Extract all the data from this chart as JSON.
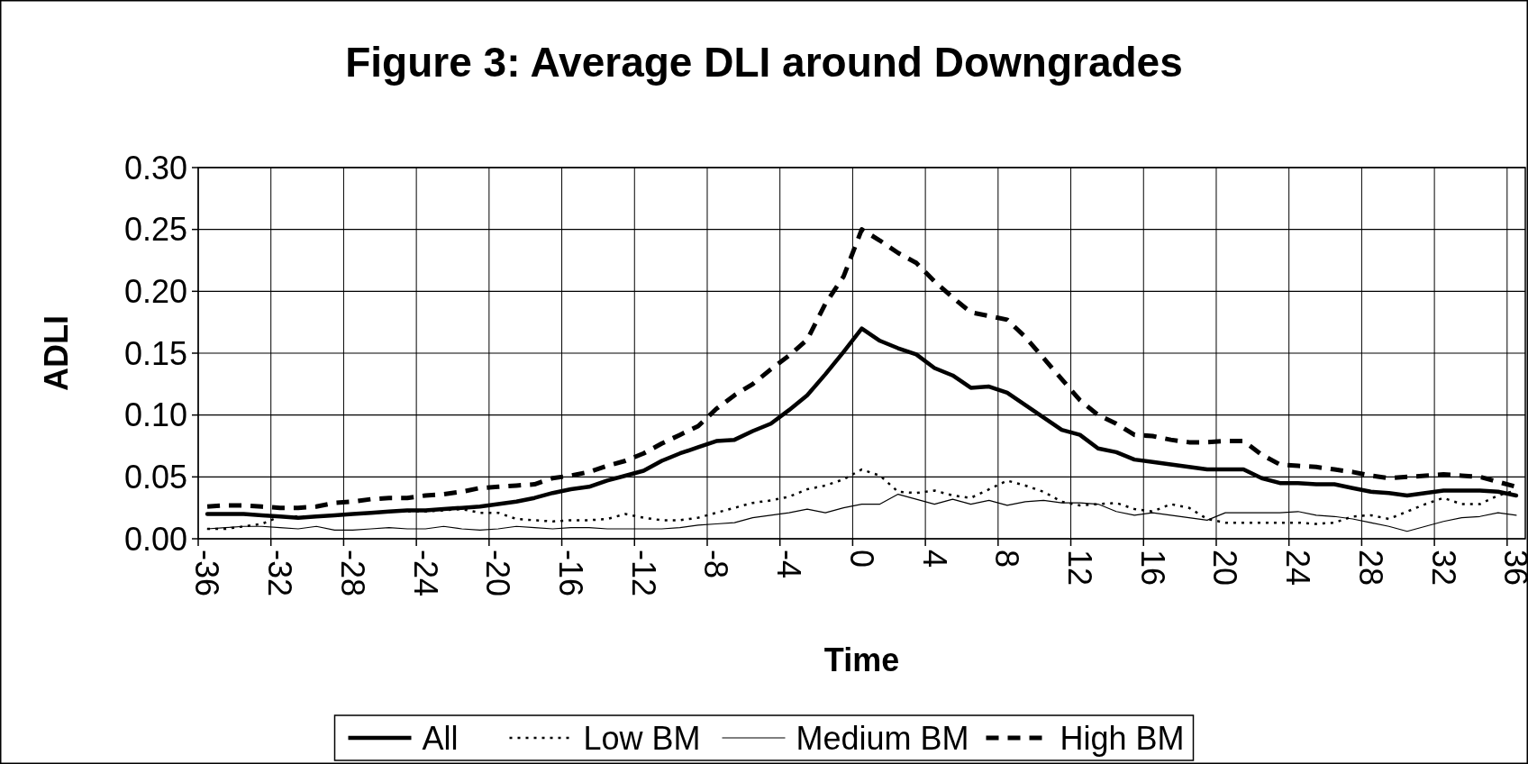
{
  "chart_data": {
    "type": "line",
    "title": "Figure 3: Average DLI around Downgrades",
    "xlabel": "Time",
    "ylabel": "ADLI",
    "categories": [
      "-36",
      null,
      null,
      null,
      "-32",
      null,
      null,
      null,
      "-28",
      null,
      null,
      null,
      "-24",
      null,
      null,
      null,
      "-20",
      null,
      null,
      null,
      "-16",
      null,
      null,
      null,
      "-12",
      null,
      null,
      null,
      "-8",
      null,
      null,
      null,
      "-4",
      null,
      null,
      null,
      "0",
      null,
      null,
      null,
      "4",
      null,
      null,
      null,
      "8",
      null,
      null,
      null,
      "12",
      null,
      null,
      null,
      "16",
      null,
      null,
      null,
      "20",
      null,
      null,
      null,
      "24",
      null,
      null,
      null,
      "28",
      null,
      null,
      null,
      "32",
      null,
      null,
      null,
      "36"
    ],
    "ylim": [
      0,
      0.3
    ],
    "yticks": [
      {
        "value": 0,
        "label": "0.00"
      },
      {
        "value": 0.05,
        "label": "0.05"
      },
      {
        "value": 0.1,
        "label": "0.10"
      },
      {
        "value": 0.15,
        "label": "0.15"
      },
      {
        "value": 0.2,
        "label": "0.20"
      },
      {
        "value": 0.25,
        "label": "0.25"
      },
      {
        "value": 0.3,
        "label": "0.30"
      }
    ],
    "grid": true,
    "legend": "bottom",
    "marker": "none",
    "series": [
      {
        "name": "All",
        "color": "#000000",
        "line_style": "solid",
        "values": [
          0.02,
          0.02,
          0.02,
          0.019,
          0.018,
          0.017,
          0.018,
          0.019,
          0.02,
          0.021,
          0.022,
          0.023,
          0.023,
          0.024,
          0.025,
          0.026,
          0.028,
          0.03,
          0.033,
          0.037,
          0.04,
          0.042,
          0.047,
          0.051,
          0.055,
          0.063,
          0.069,
          0.074,
          0.079,
          0.08,
          0.087,
          0.093,
          0.104,
          0.116,
          0.133,
          0.151,
          0.17,
          0.16,
          0.154,
          0.149,
          0.138,
          0.132,
          0.122,
          0.123,
          0.118,
          0.108,
          0.098,
          0.088,
          0.084,
          0.073,
          0.07,
          0.064,
          0.062,
          0.06,
          0.058,
          0.056,
          0.056,
          0.056,
          0.049,
          0.045,
          0.045,
          0.044,
          0.044,
          0.041,
          0.038,
          0.037,
          0.035,
          0.037,
          0.039,
          0.039,
          0.039,
          0.038,
          0.035
        ]
      },
      {
        "name": "Low BM",
        "color": "#000000",
        "line_style": "dotted",
        "values": [
          0.008,
          0.008,
          0.01,
          0.012,
          0.018,
          0.018,
          0.018,
          0.019,
          0.02,
          0.021,
          0.022,
          0.022,
          0.022,
          0.023,
          0.024,
          0.021,
          0.021,
          0.016,
          0.015,
          0.014,
          0.015,
          0.015,
          0.016,
          0.02,
          0.017,
          0.015,
          0.015,
          0.017,
          0.021,
          0.025,
          0.029,
          0.031,
          0.034,
          0.04,
          0.043,
          0.048,
          0.056,
          0.051,
          0.038,
          0.037,
          0.039,
          0.035,
          0.033,
          0.04,
          0.047,
          0.043,
          0.038,
          0.03,
          0.027,
          0.028,
          0.029,
          0.024,
          0.022,
          0.028,
          0.025,
          0.016,
          0.013,
          0.013,
          0.013,
          0.013,
          0.013,
          0.012,
          0.013,
          0.018,
          0.019,
          0.016,
          0.022,
          0.028,
          0.033,
          0.028,
          0.028,
          0.035,
          0.039
        ]
      },
      {
        "name": "Medium BM",
        "color": "#000000",
        "line_style": "solid",
        "values": [
          0.008,
          0.009,
          0.01,
          0.01,
          0.009,
          0.008,
          0.01,
          0.007,
          0.007,
          0.008,
          0.009,
          0.008,
          0.008,
          0.01,
          0.008,
          0.007,
          0.008,
          0.01,
          0.009,
          0.008,
          0.009,
          0.009,
          0.008,
          0.008,
          0.008,
          0.008,
          0.009,
          0.011,
          0.012,
          0.013,
          0.017,
          0.019,
          0.021,
          0.024,
          0.021,
          0.025,
          0.028,
          0.028,
          0.036,
          0.032,
          0.028,
          0.032,
          0.028,
          0.031,
          0.027,
          0.03,
          0.031,
          0.029,
          0.029,
          0.028,
          0.022,
          0.019,
          0.021,
          0.019,
          0.017,
          0.015,
          0.021,
          0.021,
          0.021,
          0.021,
          0.022,
          0.019,
          0.018,
          0.016,
          0.013,
          0.01,
          0.006,
          0.01,
          0.014,
          0.017,
          0.018,
          0.021,
          0.019
        ]
      },
      {
        "name": "High BM",
        "color": "#000000",
        "line_style": "dashed",
        "values": [
          0.026,
          0.027,
          0.027,
          0.026,
          0.025,
          0.025,
          0.026,
          0.029,
          0.03,
          0.032,
          0.033,
          0.033,
          0.035,
          0.036,
          0.038,
          0.041,
          0.042,
          0.043,
          0.044,
          0.049,
          0.051,
          0.054,
          0.059,
          0.063,
          0.069,
          0.077,
          0.084,
          0.091,
          0.105,
          0.116,
          0.125,
          0.137,
          0.148,
          0.161,
          0.19,
          0.212,
          0.25,
          0.241,
          0.231,
          0.223,
          0.208,
          0.195,
          0.183,
          0.18,
          0.177,
          0.163,
          0.146,
          0.129,
          0.112,
          0.1,
          0.093,
          0.084,
          0.083,
          0.08,
          0.078,
          0.078,
          0.079,
          0.079,
          0.068,
          0.06,
          0.059,
          0.058,
          0.056,
          0.054,
          0.051,
          0.049,
          0.05,
          0.051,
          0.052,
          0.051,
          0.05,
          0.046,
          0.042
        ]
      }
    ]
  }
}
